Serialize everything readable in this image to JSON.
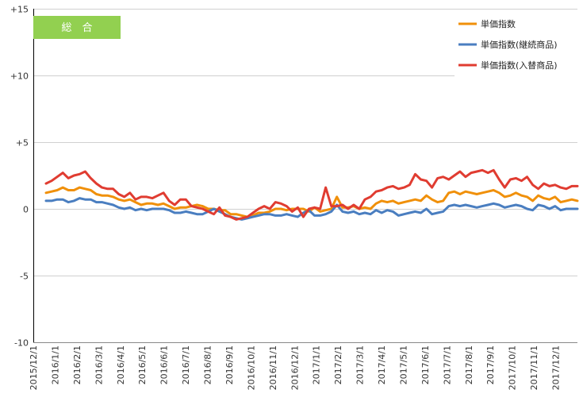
{
  "chart_data": {
    "type": "line",
    "badge": "総　合",
    "ylim": [
      -10,
      15
    ],
    "yticks": [
      15,
      10,
      5,
      0,
      -5,
      -10
    ],
    "ytick_labels": [
      "+15",
      "+10",
      "+5",
      "0",
      "-5",
      "-10"
    ],
    "xtick_labels": [
      "2015/12/1",
      "2016/1/1",
      "2016/2/1",
      "2016/3/1",
      "2016/4/1",
      "2016/5/1",
      "2016/6/1",
      "2016/7/1",
      "2016/8/1",
      "2016/9/1",
      "2016/10/1",
      "2016/11/1",
      "2016/12/1",
      "2017/1/1",
      "2017/2/1",
      "2017/3/1",
      "2017/4/1",
      "2017/5/1",
      "2017/6/1",
      "2017/7/1",
      "2017/8/1",
      "2017/9/1",
      "2017/10/1",
      "2017/11/1",
      "2017/12/1"
    ],
    "grid": true,
    "legend_position": "top-right",
    "series": [
      {
        "name": "単価指数",
        "color": "#f0900a",
        "values": [
          1.2,
          1.3,
          1.4,
          1.6,
          1.4,
          1.4,
          1.6,
          1.5,
          1.4,
          1.1,
          1.0,
          1.0,
          0.9,
          0.7,
          0.6,
          0.7,
          0.5,
          0.3,
          0.4,
          0.4,
          0.3,
          0.4,
          0.2,
          0.0,
          0.1,
          0.1,
          0.2,
          0.3,
          0.2,
          0.0,
          0.0,
          -0.1,
          -0.1,
          -0.4,
          -0.4,
          -0.5,
          -0.6,
          -0.5,
          -0.3,
          -0.3,
          -0.2,
          0.0,
          0.0,
          -0.1,
          0.0,
          0.0,
          0.0,
          -0.2,
          0.1,
          -0.2,
          -0.1,
          0.0,
          0.9,
          0.1,
          0.1,
          0.2,
          0.0,
          0.1,
          0.0,
          0.4,
          0.6,
          0.5,
          0.6,
          0.4,
          0.5,
          0.6,
          0.7,
          0.6,
          1.0,
          0.7,
          0.5,
          0.6,
          1.2,
          1.3,
          1.1,
          1.3,
          1.2,
          1.1,
          1.2,
          1.3,
          1.4,
          1.2,
          0.9,
          1.0,
          1.2,
          1.0,
          0.9,
          0.6,
          1.0,
          0.8,
          0.7,
          0.9,
          0.5,
          0.6,
          0.7,
          0.6
        ]
      },
      {
        "name": "単価指数(継続商品)",
        "color": "#4a7ec0",
        "values": [
          0.6,
          0.6,
          0.7,
          0.7,
          0.5,
          0.6,
          0.8,
          0.7,
          0.7,
          0.5,
          0.5,
          0.4,
          0.3,
          0.1,
          0.0,
          0.1,
          -0.1,
          0.0,
          -0.1,
          0.0,
          0.0,
          0.0,
          -0.1,
          -0.3,
          -0.3,
          -0.2,
          -0.3,
          -0.4,
          -0.4,
          -0.2,
          0.0,
          -0.2,
          -0.4,
          -0.6,
          -0.7,
          -0.8,
          -0.7,
          -0.6,
          -0.5,
          -0.4,
          -0.4,
          -0.5,
          -0.5,
          -0.4,
          -0.5,
          -0.6,
          -0.3,
          -0.1,
          -0.5,
          -0.5,
          -0.4,
          -0.2,
          0.3,
          -0.2,
          -0.3,
          -0.2,
          -0.4,
          -0.3,
          -0.4,
          -0.1,
          -0.3,
          -0.1,
          -0.2,
          -0.5,
          -0.4,
          -0.3,
          -0.2,
          -0.3,
          0.0,
          -0.4,
          -0.3,
          -0.2,
          0.2,
          0.3,
          0.2,
          0.3,
          0.2,
          0.1,
          0.2,
          0.3,
          0.4,
          0.3,
          0.1,
          0.2,
          0.3,
          0.2,
          0.0,
          -0.1,
          0.3,
          0.2,
          0.0,
          0.2,
          -0.1,
          0.0,
          0.0,
          0.0
        ]
      },
      {
        "name": "単価指数(入替商品)",
        "color": "#e03c31",
        "values": [
          1.9,
          2.1,
          2.4,
          2.7,
          2.3,
          2.5,
          2.6,
          2.8,
          2.3,
          1.9,
          1.6,
          1.5,
          1.5,
          1.1,
          0.9,
          1.2,
          0.7,
          0.9,
          0.9,
          0.8,
          1.0,
          1.2,
          0.6,
          0.3,
          0.7,
          0.7,
          0.2,
          0.1,
          0.0,
          -0.2,
          -0.4,
          0.1,
          -0.5,
          -0.6,
          -0.8,
          -0.7,
          -0.6,
          -0.3,
          0.0,
          0.2,
          0.0,
          0.5,
          0.4,
          0.2,
          -0.2,
          0.1,
          -0.6,
          0.0,
          0.1,
          0.0,
          1.6,
          0.2,
          0.2,
          0.3,
          0.0,
          0.3,
          0.0,
          0.7,
          0.9,
          1.3,
          1.4,
          1.6,
          1.7,
          1.5,
          1.6,
          1.8,
          2.6,
          2.2,
          2.1,
          1.6,
          2.3,
          2.4,
          2.2,
          2.5,
          2.8,
          2.4,
          2.7,
          2.8,
          2.9,
          2.7,
          2.9,
          2.2,
          1.6,
          2.2,
          2.3,
          2.1,
          2.4,
          1.8,
          1.5,
          1.9,
          1.7,
          1.8,
          1.6,
          1.5,
          1.7,
          1.7
        ]
      }
    ]
  }
}
